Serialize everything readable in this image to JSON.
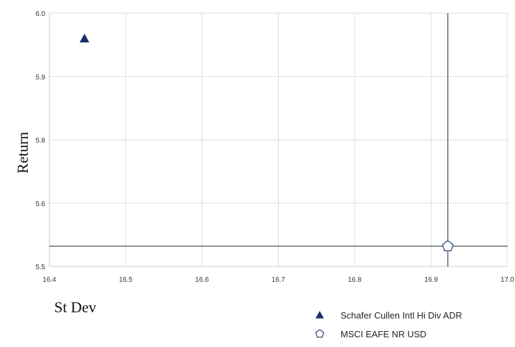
{
  "chart_data": {
    "type": "scatter",
    "xlabel": "St Dev",
    "ylabel": "Return",
    "xlim": [
      16.4,
      17.0
    ],
    "ylim": [
      5.5,
      6.0
    ],
    "x_ticks": [
      "16.4",
      "16.5",
      "16.6",
      "16.7",
      "16.8",
      "16.9",
      "17.0"
    ],
    "y_ticks": [
      "5.5",
      "5.6",
      "5.8",
      "5.9",
      "6.0"
    ],
    "grid": true,
    "legend_position": "bottom-right",
    "series": [
      {
        "name": "Schafer Cullen Intl Hi Div ADR",
        "marker": "triangle",
        "color": "#1f2d6b",
        "points": [
          {
            "x": 16.446,
            "y": 5.96
          }
        ]
      },
      {
        "name": "MSCI EAFE NR USD",
        "marker": "pentagon",
        "color": "#2e4a7a",
        "points": [
          {
            "x": 16.922,
            "y": 5.532
          }
        ]
      }
    ],
    "crosshair": {
      "x": 16.922,
      "y": 5.532
    }
  }
}
